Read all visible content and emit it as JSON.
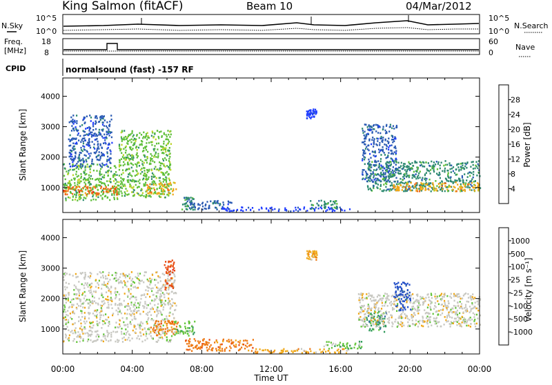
{
  "header": {
    "station": "King Salmon (fitACF)",
    "beam": "Beam 10",
    "date": "04/Mar/2012"
  },
  "status_panels": {
    "nsky_label": "N.Sky",
    "nsearch_label": "N.Search",
    "noise_ticks": [
      "10^5",
      "10^0"
    ],
    "freq_label_line1": "Freq.",
    "freq_label_line2": "[MHz]",
    "freq_ticks": [
      "18",
      "8"
    ],
    "nave_label": "Nave",
    "nave_ticks": [
      "60",
      "0"
    ],
    "cpid_label": "CPID",
    "cpid_text": "normalsound (fast) -157 RF"
  },
  "chart_data": [
    {
      "type": "heatmap",
      "name": "power",
      "xlabel": "Time UT",
      "ylabel": "Slant Range [km]",
      "x_ticks": [
        "00:00",
        "04:00",
        "08:00",
        "12:00",
        "16:00",
        "20:00",
        "00:00"
      ],
      "xlim_hours": [
        0,
        24
      ],
      "ylim": [
        180,
        4600
      ],
      "y_ticks": [
        1000,
        2000,
        3000,
        4000
      ],
      "colorbar": {
        "label": "Power [dB]",
        "ticks": [
          "4",
          "8",
          "12",
          "16",
          "20",
          "24",
          "28"
        ],
        "colors": [
          "#1f3cff",
          "#2a5ab3",
          "#2e8a70",
          "#5fbf3a",
          "#bcd42a",
          "#f0a818",
          "#ee6a16",
          "#e11b14"
        ]
      },
      "regions": [
        {
          "x0": 0.0,
          "x1": 3.2,
          "y0": 600,
          "y1": 1800,
          "level": 3
        },
        {
          "x0": 0.0,
          "x1": 3.2,
          "y0": 780,
          "y1": 1080,
          "level": 6
        },
        {
          "x0": 0.3,
          "x1": 2.8,
          "y0": 1700,
          "y1": 3400,
          "level": 1
        },
        {
          "x0": 3.2,
          "x1": 6.2,
          "y0": 700,
          "y1": 2900,
          "level": 3
        },
        {
          "x0": 4.8,
          "x1": 6.5,
          "y0": 800,
          "y1": 1200,
          "level": 5
        },
        {
          "x0": 6.8,
          "x1": 7.6,
          "y0": 300,
          "y1": 700,
          "level": 2
        },
        {
          "x0": 7.3,
          "x1": 9.8,
          "y0": 300,
          "y1": 600,
          "level": 1
        },
        {
          "x0": 9.0,
          "x1": 16.5,
          "y0": 250,
          "y1": 380,
          "level": 0
        },
        {
          "x0": 14.2,
          "x1": 15.8,
          "y0": 330,
          "y1": 600,
          "level": 2
        },
        {
          "x0": 14.0,
          "x1": 14.6,
          "y0": 3300,
          "y1": 3600,
          "level": 0
        },
        {
          "x0": 17.2,
          "x1": 19.2,
          "y0": 1200,
          "y1": 3100,
          "level": 1
        },
        {
          "x0": 17.5,
          "x1": 24.0,
          "y0": 900,
          "y1": 1900,
          "level": 2
        },
        {
          "x0": 19.0,
          "x1": 24.0,
          "y0": 900,
          "y1": 1200,
          "level": 5
        }
      ]
    },
    {
      "type": "heatmap",
      "name": "velocity",
      "xlabel": "Time UT",
      "ylabel": "Slant Range [km]",
      "x_ticks": [
        "00:00",
        "04:00",
        "08:00",
        "12:00",
        "16:00",
        "20:00",
        "00:00"
      ],
      "xlim_hours": [
        0,
        24
      ],
      "ylim": [
        180,
        4600
      ],
      "y_ticks": [
        1000,
        2000,
        3000,
        4000
      ],
      "colorbar": {
        "label": "Velocity [m s⁻¹]",
        "ticks": [
          "1000",
          "500",
          "100",
          "25",
          "-25",
          "-100",
          "-500",
          "-1000"
        ],
        "colors": [
          "#2450c8",
          "#3d6fa8",
          "#2f9a5a",
          "#63c43a",
          "#c8c8c2",
          "#f0a818",
          "#ee7a16",
          "#e84a12",
          "#e11b14"
        ]
      },
      "regions": [
        {
          "x0": 0.0,
          "x1": 6.5,
          "y0": 600,
          "y1": 2900,
          "level": 4
        },
        {
          "x0": 5.8,
          "x1": 6.4,
          "y0": 2300,
          "y1": 3300,
          "level": 7
        },
        {
          "x0": 5.0,
          "x1": 6.6,
          "y0": 800,
          "y1": 1300,
          "level": 6
        },
        {
          "x0": 6.4,
          "x1": 7.6,
          "y0": 800,
          "y1": 1300,
          "level": 3
        },
        {
          "x0": 7.0,
          "x1": 11.0,
          "y0": 300,
          "y1": 700,
          "level": 6
        },
        {
          "x0": 11.0,
          "x1": 16.5,
          "y0": 230,
          "y1": 380,
          "level": 5
        },
        {
          "x0": 15.0,
          "x1": 17.2,
          "y0": 380,
          "y1": 620,
          "level": 3
        },
        {
          "x0": 17.4,
          "x1": 18.6,
          "y0": 900,
          "y1": 1600,
          "level": 2
        },
        {
          "x0": 17.0,
          "x1": 24.0,
          "y0": 1100,
          "y1": 2200,
          "level": 4
        },
        {
          "x0": 19.0,
          "x1": 20.0,
          "y0": 1600,
          "y1": 2600,
          "level": 0
        },
        {
          "x0": 14.0,
          "x1": 14.6,
          "y0": 3300,
          "y1": 3600,
          "level": 5
        }
      ]
    }
  ]
}
